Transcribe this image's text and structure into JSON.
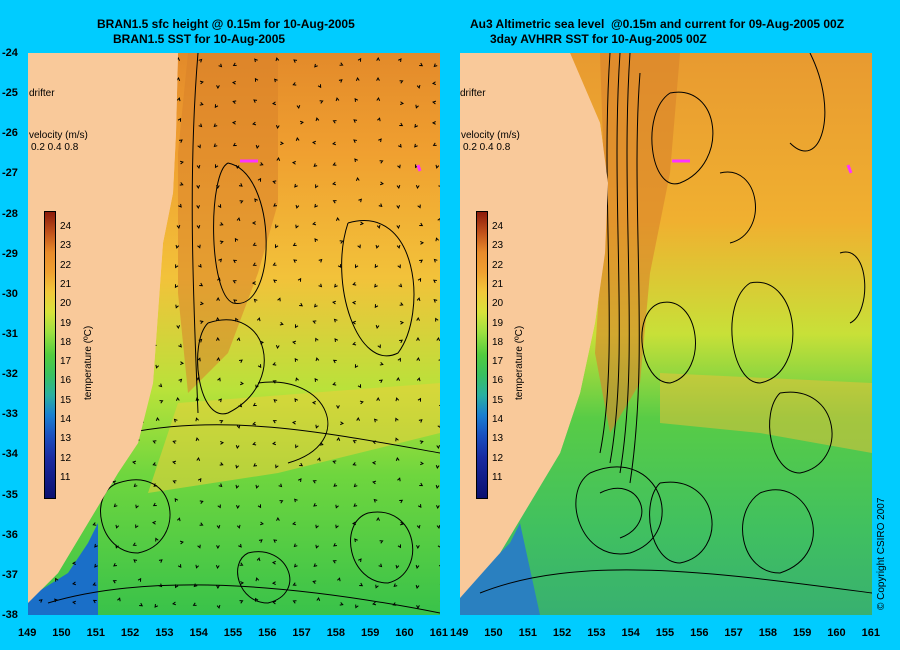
{
  "left_panel": {
    "title_line1": "BRAN1.5 sfc height @ 0.15m for 10-Aug-2005",
    "title_line2": "BRAN1.5 SST for 10-Aug-2005",
    "drifter_label": "drifter",
    "velocity_label": "velocity (m/s)",
    "velocity_scale": "0.2 0.4 0.8"
  },
  "right_panel": {
    "title_line1": "Au3 Altimetric sea level  @0.15m and current for 09-Aug-2005 00Z",
    "title_line2": "3day AVHRR SST for 10-Aug-2005 00Z",
    "drifter_label": "drifter",
    "velocity_label": "velocity (m/s)",
    "velocity_scale": "0.2 0.4 0.8"
  },
  "colorbar": {
    "title": "temperature (ºC)",
    "ticks": [
      "24",
      "23",
      "22",
      "21",
      "20",
      "19",
      "18",
      "17",
      "16",
      "15",
      "14",
      "13",
      "12",
      "11"
    ]
  },
  "axes": {
    "lat_ticks": [
      "-24",
      "-25",
      "-26",
      "-27",
      "-28",
      "-29",
      "-30",
      "-31",
      "-32",
      "-33",
      "-34",
      "-35",
      "-36",
      "-37",
      "-38"
    ],
    "lon_ticks": [
      "149",
      "150",
      "151",
      "152",
      "153",
      "154",
      "155",
      "156",
      "157",
      "158",
      "159",
      "160",
      "161"
    ]
  },
  "copyright": "© Copyright CSIRO 2007",
  "colors": {
    "background": "#00ccff",
    "land": "#f9c99a",
    "drifter": "#ff33ff"
  }
}
